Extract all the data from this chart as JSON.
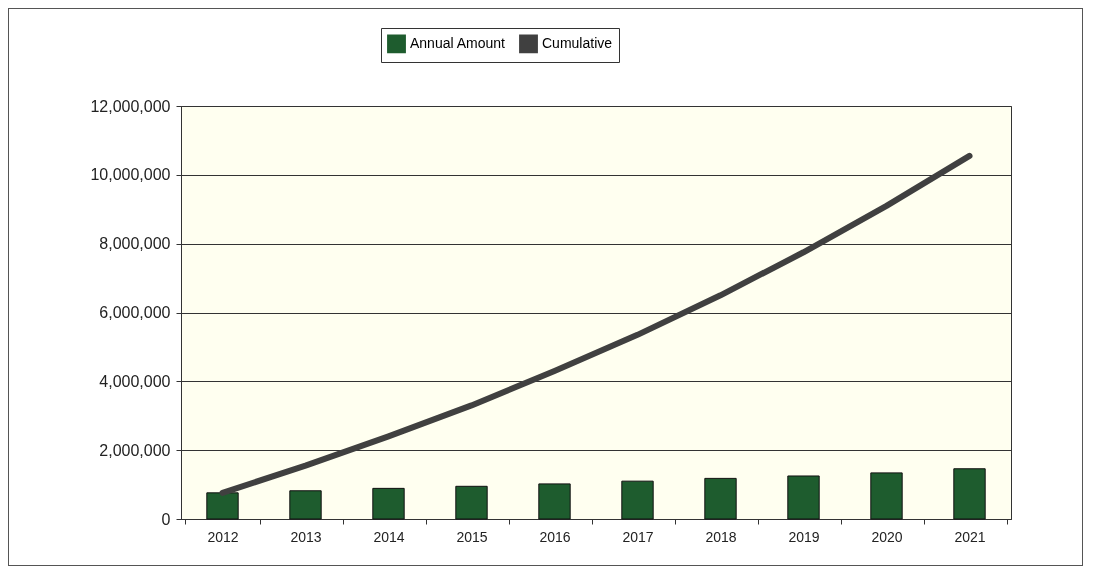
{
  "chart_data": {
    "type": "bar",
    "categories": [
      "2012",
      "2013",
      "2014",
      "2015",
      "2016",
      "2017",
      "2018",
      "2019",
      "2020",
      "2021"
    ],
    "series": [
      {
        "name": "Annual Amount",
        "color": "#1e5c2e",
        "values": [
          760000,
          820000,
          890000,
          950000,
          1020000,
          1100000,
          1180000,
          1250000,
          1340000,
          1460000
        ]
      },
      {
        "name": "Cumulative",
        "type": "line",
        "color": "#404040",
        "values": [
          760000,
          1550000,
          2400000,
          3300000,
          4300000,
          5350000,
          6500000,
          7750000,
          9100000,
          10550000
        ]
      }
    ],
    "ylim": [
      0,
      12000000
    ],
    "yticks": [
      0,
      {
        "value": 2000000,
        "label": "2,000,000"
      },
      {
        "value": 4000000,
        "label": "4,000,000"
      },
      {
        "value": 6000000,
        "label": "6,000,000"
      },
      {
        "value": 8000000,
        "label": "8,000,000"
      },
      {
        "value": 10000000,
        "label": "10,000,000"
      },
      {
        "value": 12000000,
        "label": "12,000,000"
      }
    ],
    "grid": "y",
    "legend": "top"
  }
}
